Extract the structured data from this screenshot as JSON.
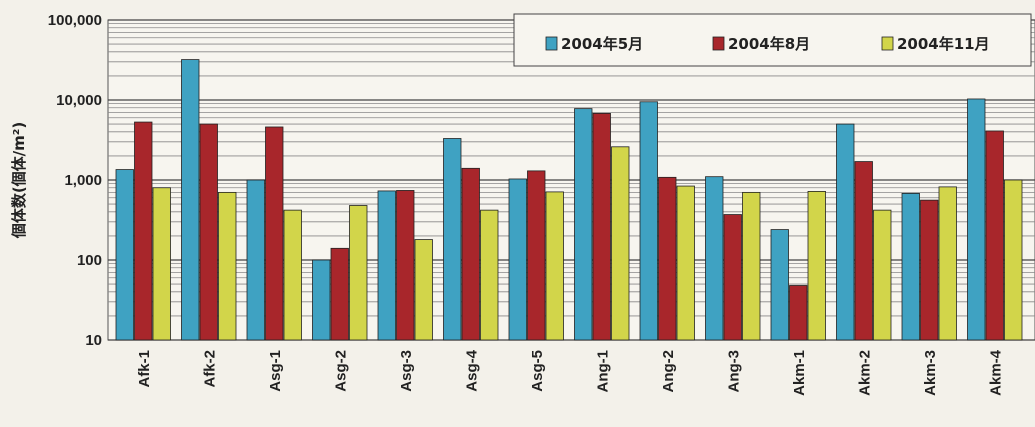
{
  "chart_data": {
    "type": "bar",
    "ylabel": "個体数(個体/m²)",
    "yscale": "log",
    "ylim": [
      10,
      100000
    ],
    "y_ticks": [
      "100,000",
      "10,000",
      "1,000",
      "100",
      "10"
    ],
    "y_tick_values": [
      100000,
      10000,
      1000,
      100,
      10
    ],
    "grid": "horizontal",
    "legend_position": "top-right",
    "categories": [
      "Afk-1",
      "Afk-2",
      "Asg-1",
      "Asg-2",
      "Asg-3",
      "Asg-4",
      "Asg-5",
      "Ang-1",
      "Ang-2",
      "Ang-3",
      "Akm-1",
      "Akm-2",
      "Akm-3",
      "Akm-4"
    ],
    "series": [
      {
        "name": "2004年5月",
        "color": "#3fa2c2",
        "values": [
          1350,
          32000,
          1000,
          100,
          730,
          3300,
          1030,
          7800,
          9500,
          1100,
          240,
          5000,
          680,
          10300
        ]
      },
      {
        "name": "2004年8月",
        "color": "#a8262b",
        "values": [
          5300,
          5000,
          4600,
          140,
          740,
          1400,
          1300,
          6800,
          1080,
          370,
          48,
          1700,
          560,
          4100
        ]
      },
      {
        "name": "2004年11月",
        "color": "#d2d54a",
        "values": [
          800,
          700,
          420,
          480,
          180,
          420,
          710,
          2600,
          840,
          700,
          720,
          420,
          820,
          1000
        ]
      }
    ]
  }
}
